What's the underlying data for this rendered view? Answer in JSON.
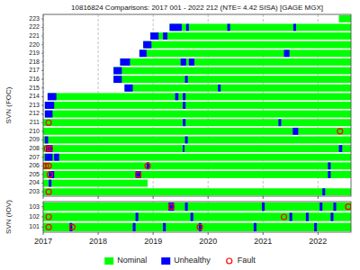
{
  "chart_data": [
    {
      "type": "timeline",
      "orientation": "horizontal",
      "title": "10816824 Comparisons: 2017 001 - 2022 212 (NTE= 4.42 SISA) [GAGE MGX]",
      "ylabel": "SVN (FOC)",
      "categories": [
        "203",
        "204",
        "205",
        "206",
        "207",
        "208",
        "209",
        "210",
        "211",
        "212",
        "213",
        "214",
        "215",
        "216",
        "217",
        "218",
        "219",
        "220",
        "221",
        "222",
        "223"
      ],
      "xlim": [
        2017.0,
        2022.6
      ],
      "xticks": [
        2017,
        2018,
        2019,
        2020,
        2021,
        2022
      ],
      "grid": true,
      "tick_labels": "y",
      "series": [
        {
          "type": "bar",
          "color": "#00ff00",
          "values": [
            [
              2017.0,
              2022.6
            ],
            [
              2017.0,
              2018.9
            ],
            [
              2017.0,
              2022.6
            ],
            [
              2017.0,
              2022.6
            ],
            [
              2017.0,
              2022.6
            ],
            [
              2017.0,
              2022.6
            ],
            [
              2017.0,
              2022.6
            ],
            [
              2017.0,
              2022.6
            ],
            [
              2017.0,
              2022.6
            ],
            [
              2017.03,
              2022.6
            ],
            [
              2017.03,
              2022.6
            ],
            [
              2017.08,
              2022.6
            ],
            [
              2018.48,
              2022.6
            ],
            [
              2018.28,
              2022.6
            ],
            [
              2018.28,
              2022.6
            ],
            [
              2018.4,
              2022.6
            ],
            [
              2018.75,
              2022.6
            ],
            [
              2018.82,
              2022.6
            ],
            [
              2018.95,
              2022.6
            ],
            [
              2019.3,
              2022.6
            ],
            [
              2022.38,
              2022.6
            ]
          ]
        },
        {
          "type": "bar",
          "color": "#0000ff",
          "values": [
            [
              [
                2022.08,
                2022.13
              ]
            ],
            [
              [
                2017.1,
                2017.15
              ]
            ],
            [
              [
                2017.1,
                2017.2
              ],
              [
                2018.68,
                2018.78
              ],
              [
                2022.18,
                2022.23
              ]
            ],
            [
              [
                2018.88,
                2018.93
              ],
              [
                2022.18,
                2022.23
              ]
            ],
            [
              [
                2017.03,
                2017.17
              ],
              [
                2017.2,
                2017.29
              ]
            ],
            [
              [
                2017.05,
                2017.17
              ],
              [
                2019.54,
                2019.57
              ],
              [
                2022.38,
                2022.44
              ]
            ],
            [
              [
                2017.03,
                2017.09
              ],
              [
                2019.58,
                2019.63
              ]
            ],
            [
              [
                2021.54,
                2021.64
              ]
            ],
            [
              [
                2019.54,
                2019.59
              ],
              [
                2021.28,
                2021.33
              ]
            ],
            [
              [
                2017.03,
                2017.17
              ]
            ],
            [
              [
                2017.03,
                2017.2
              ],
              [
                2019.54,
                2019.59
              ]
            ],
            [
              [
                2017.08,
                2017.24
              ],
              [
                2019.4,
                2019.46
              ],
              [
                2019.54,
                2019.59
              ]
            ],
            [
              [
                2018.48,
                2018.63
              ],
              [
                2020.18,
                2020.23
              ]
            ],
            [
              [
                2018.28,
                2018.43
              ],
              [
                2019.58,
                2019.63
              ]
            ],
            [
              [
                2018.28,
                2018.43
              ]
            ],
            [
              [
                2018.4,
                2018.58
              ],
              [
                2019.5,
                2019.6
              ],
              [
                2019.65,
                2019.75
              ]
            ],
            [
              [
                2018.75,
                2018.88
              ],
              [
                2021.38,
                2021.48
              ]
            ],
            [
              [
                2018.82,
                2018.97
              ]
            ],
            [
              [
                2018.95,
                2019.1
              ],
              [
                2019.18,
                2019.26
              ]
            ],
            [
              [
                2019.3,
                2019.52
              ],
              [
                2019.6,
                2019.65
              ],
              [
                2020.35,
                2020.4
              ],
              [
                2021.55,
                2021.6
              ]
            ],
            []
          ]
        },
        {
          "type": "scatter",
          "marker": "circle",
          "color": "#ff0000",
          "values": [
            [
              2017.1
            ],
            [],
            [
              2017.12,
              2018.73
            ],
            [
              2017.0,
              2017.05,
              2017.1,
              2018.9
            ],
            [],
            [
              2017.07,
              2017.12
            ],
            [],
            [
              2022.4
            ],
            [
              2017.1
            ],
            [],
            [],
            [],
            [],
            [],
            [],
            [],
            [],
            [],
            [],
            [],
            []
          ]
        }
      ]
    },
    {
      "type": "timeline",
      "orientation": "horizontal",
      "ylabel": "SVN (IOV)",
      "categories": [
        "101",
        "102",
        "103"
      ],
      "xlim": [
        2017.0,
        2022.6
      ],
      "xticks": [
        2017,
        2018,
        2019,
        2020,
        2021,
        2022
      ],
      "grid": true,
      "legend": "bottom",
      "series": [
        {
          "type": "bar",
          "name": "Nominal",
          "color": "#00ff00",
          "values": [
            [
              2017.0,
              2022.6
            ],
            [
              2017.0,
              2022.6
            ],
            [
              2017.0,
              2022.6
            ]
          ]
        },
        {
          "type": "bar",
          "name": "Unhealthy",
          "color": "#0000ff",
          "values": [
            [
              [
                2017.48,
                2017.53
              ],
              [
                2018.63,
                2018.68
              ],
              [
                2019.18,
                2019.23
              ],
              [
                2019.83,
                2019.88
              ],
              [
                2020.83,
                2020.88
              ],
              [
                2021.93,
                2021.98
              ]
            ],
            [
              [
                2018.68,
                2018.73
              ],
              [
                2019.68,
                2019.73
              ],
              [
                2021.48,
                2021.53
              ],
              [
                2021.78,
                2021.83
              ],
              [
                2022.23,
                2022.28
              ]
            ],
            [
              [
                2019.28,
                2019.38
              ],
              [
                2019.58,
                2019.63
              ],
              [
                2020.98,
                2021.03
              ],
              [
                2022.03,
                2022.08
              ],
              [
                2022.28,
                2022.33
              ]
            ]
          ]
        },
        {
          "type": "scatter",
          "name": "Fault",
          "marker": "circle",
          "color": "#ff0000",
          "values": [
            [
              2017.1,
              2017.53,
              2019.85
            ],
            [
              2017.1,
              2021.38
            ],
            [
              2019.33,
              2022.55
            ]
          ]
        }
      ]
    }
  ]
}
